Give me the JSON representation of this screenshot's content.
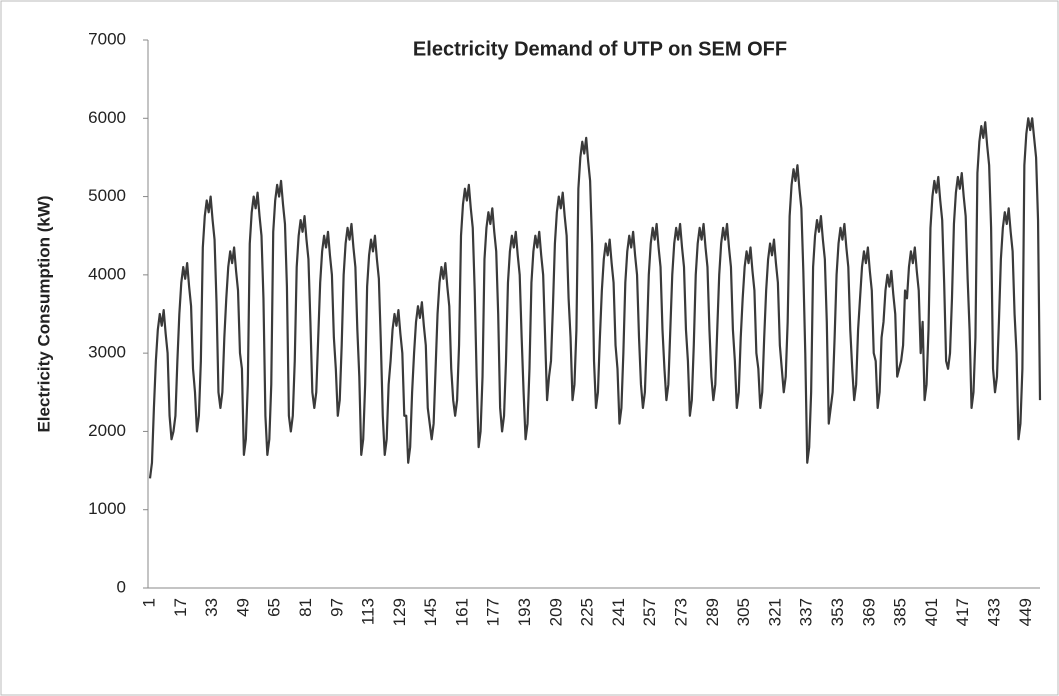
{
  "chart_data": {
    "type": "line",
    "title": "Electricity Demand of UTP on SEM OFF",
    "y_label": "Electricity Consumption (kW)",
    "color": "#3a3a3a",
    "grid": false,
    "ylim": [
      0,
      7000
    ],
    "yticks": [
      0,
      1000,
      2000,
      3000,
      4000,
      5000,
      6000,
      7000
    ],
    "categories": [
      "1",
      null,
      null,
      null,
      null,
      null,
      null,
      null,
      null,
      null,
      null,
      null,
      null,
      null,
      null,
      null,
      "17",
      null,
      null,
      null,
      null,
      null,
      null,
      null,
      null,
      null,
      null,
      null,
      null,
      null,
      null,
      null,
      "33",
      null,
      null,
      null,
      null,
      null,
      null,
      null,
      null,
      null,
      null,
      null,
      null,
      null,
      null,
      null,
      "49",
      null,
      null,
      null,
      null,
      null,
      null,
      null,
      null,
      null,
      null,
      null,
      null,
      null,
      null,
      null,
      "65",
      null,
      null,
      null,
      null,
      null,
      null,
      null,
      null,
      null,
      null,
      null,
      null,
      null,
      null,
      null,
      "81",
      null,
      null,
      null,
      null,
      null,
      null,
      null,
      null,
      null,
      null,
      null,
      null,
      null,
      null,
      null,
      "97",
      null,
      null,
      null,
      null,
      null,
      null,
      null,
      null,
      null,
      null,
      null,
      null,
      null,
      null,
      null,
      "113",
      null,
      null,
      null,
      null,
      null,
      null,
      null,
      null,
      null,
      null,
      null,
      null,
      null,
      null,
      null,
      "129",
      null,
      null,
      null,
      null,
      null,
      null,
      null,
      null,
      null,
      null,
      null,
      null,
      null,
      null,
      null,
      "145",
      null,
      null,
      null,
      null,
      null,
      null,
      null,
      null,
      null,
      null,
      null,
      null,
      null,
      null,
      null,
      "161",
      null,
      null,
      null,
      null,
      null,
      null,
      null,
      null,
      null,
      null,
      null,
      null,
      null,
      null,
      null,
      "177",
      null,
      null,
      null,
      null,
      null,
      null,
      null,
      null,
      null,
      null,
      null,
      null,
      null,
      null,
      null,
      "193",
      null,
      null,
      null,
      null,
      null,
      null,
      null,
      null,
      null,
      null,
      null,
      null,
      null,
      null,
      null,
      "209",
      null,
      null,
      null,
      null,
      null,
      null,
      null,
      null,
      null,
      null,
      null,
      null,
      null,
      null,
      null,
      "225",
      null,
      null,
      null,
      null,
      null,
      null,
      null,
      null,
      null,
      null,
      null,
      null,
      null,
      null,
      null,
      "241",
      null,
      null,
      null,
      null,
      null,
      null,
      null,
      null,
      null,
      null,
      null,
      null,
      null,
      null,
      null,
      "257",
      null,
      null,
      null,
      null,
      null,
      null,
      null,
      null,
      null,
      null,
      null,
      null,
      null,
      null,
      null,
      "273",
      null,
      null,
      null,
      null,
      null,
      null,
      null,
      null,
      null,
      null,
      null,
      null,
      null,
      null,
      null,
      "289",
      null,
      null,
      null,
      null,
      null,
      null,
      null,
      null,
      null,
      null,
      null,
      null,
      null,
      null,
      null,
      "305",
      null,
      null,
      null,
      null,
      null,
      null,
      null,
      null,
      null,
      null,
      null,
      null,
      null,
      null,
      null,
      "321",
      null,
      null,
      null,
      null,
      null,
      null,
      null,
      null,
      null,
      null,
      null,
      null,
      null,
      null,
      null,
      "337",
      null,
      null,
      null,
      null,
      null,
      null,
      null,
      null,
      null,
      null,
      null,
      null,
      null,
      null,
      null,
      "353",
      null,
      null,
      null,
      null,
      null,
      null,
      null,
      null,
      null,
      null,
      null,
      null,
      null,
      null,
      null,
      "369",
      null,
      null,
      null,
      null,
      null,
      null,
      null,
      null,
      null,
      null,
      null,
      null,
      null,
      null,
      null,
      "385",
      null,
      null,
      null,
      null,
      null,
      null,
      null,
      null,
      null,
      null,
      null,
      null,
      null,
      null,
      null,
      "401",
      null,
      null,
      null,
      null,
      null,
      null,
      null,
      null,
      null,
      null,
      null,
      null,
      null,
      null,
      null,
      "417",
      null,
      null,
      null,
      null,
      null,
      null,
      null,
      null,
      null,
      null,
      null,
      null,
      null,
      null,
      null,
      "433",
      null,
      null,
      null,
      null,
      null,
      null,
      null,
      null,
      null,
      null,
      null,
      null,
      null,
      null,
      null,
      "449",
      null,
      null,
      null,
      null,
      null,
      null,
      null
    ],
    "values": [
      1400,
      1600,
      2300,
      2900,
      3300,
      3500,
      3350,
      3550,
      3250,
      3000,
      2200,
      1900,
      2000,
      2200,
      2900,
      3500,
      3900,
      4100,
      3950,
      4150,
      3850,
      3600,
      2800,
      2500,
      2000,
      2200,
      2900,
      4350,
      4750,
      4950,
      4800,
      5000,
      4700,
      4450,
      3650,
      2500,
      2300,
      2500,
      3200,
      3700,
      4100,
      4300,
      4150,
      4350,
      4050,
      3800,
      3000,
      2800,
      1700,
      1900,
      2600,
      4400,
      4800,
      5000,
      4850,
      5050,
      4750,
      4500,
      3700,
      2200,
      1700,
      1900,
      2600,
      4550,
      4950,
      5150,
      5000,
      5200,
      4900,
      4650,
      3850,
      2200,
      2000,
      2200,
      2900,
      4100,
      4500,
      4700,
      4550,
      4750,
      4450,
      4200,
      3400,
      2500,
      2300,
      2500,
      3200,
      3900,
      4300,
      4500,
      4350,
      4550,
      4250,
      4000,
      3200,
      2800,
      2200,
      2400,
      3100,
      4000,
      4400,
      4600,
      4450,
      4650,
      4350,
      4100,
      3300,
      2700,
      1700,
      1900,
      2600,
      3850,
      4250,
      4450,
      4300,
      4500,
      4200,
      3950,
      3150,
      2200,
      1700,
      1900,
      2600,
      2900,
      3300,
      3500,
      3350,
      3550,
      3250,
      3000,
      2200,
      2200,
      1600,
      1800,
      2500,
      3000,
      3400,
      3600,
      3450,
      3650,
      3350,
      3100,
      2300,
      2100,
      1900,
      2100,
      2800,
      3500,
      3900,
      4100,
      3950,
      4150,
      3850,
      3600,
      2800,
      2400,
      2200,
      2400,
      3100,
      4500,
      4900,
      5100,
      4950,
      5150,
      4850,
      4600,
      3800,
      2700,
      1800,
      2000,
      2700,
      4200,
      4600,
      4800,
      4650,
      4850,
      4550,
      4300,
      3500,
      2300,
      2000,
      2200,
      2900,
      3900,
      4300,
      4500,
      4350,
      4550,
      4250,
      4000,
      3200,
      2500,
      1900,
      2100,
      2800,
      3900,
      4300,
      4500,
      4350,
      4550,
      4250,
      4000,
      3200,
      2400,
      2700,
      2900,
      3600,
      4400,
      4800,
      5000,
      4850,
      5050,
      4750,
      4500,
      3700,
      3200,
      2400,
      2600,
      3300,
      5100,
      5500,
      5700,
      5550,
      5750,
      5450,
      5200,
      4400,
      2900,
      2300,
      2500,
      3200,
      3800,
      4200,
      4400,
      4250,
      4450,
      4150,
      3900,
      3100,
      2800,
      2100,
      2300,
      3000,
      3900,
      4300,
      4500,
      4350,
      4550,
      4250,
      4000,
      3200,
      2600,
      2300,
      2500,
      3200,
      4000,
      4400,
      4600,
      4450,
      4650,
      4350,
      4100,
      3300,
      2800,
      2400,
      2600,
      3300,
      4000,
      4400,
      4600,
      4450,
      4650,
      4350,
      4100,
      3300,
      2900,
      2200,
      2400,
      3100,
      4000,
      4400,
      4600,
      4450,
      4650,
      4350,
      4100,
      3300,
      2700,
      2400,
      2600,
      3300,
      4000,
      4400,
      4600,
      4450,
      4650,
      4350,
      4100,
      3300,
      2900,
      2300,
      2500,
      3200,
      3700,
      4100,
      4300,
      4150,
      4350,
      4050,
      3800,
      3000,
      2800,
      2300,
      2500,
      3200,
      3800,
      4200,
      4400,
      4250,
      4450,
      4150,
      3900,
      3100,
      2800,
      2500,
      2700,
      3400,
      4750,
      5150,
      5350,
      5200,
      5400,
      5100,
      4850,
      4050,
      3000,
      1600,
      1800,
      2500,
      4100,
      4500,
      4700,
      4550,
      4750,
      4450,
      4200,
      3400,
      2100,
      2300,
      2500,
      3200,
      4000,
      4400,
      4600,
      4450,
      4650,
      4350,
      4100,
      3300,
      2800,
      2400,
      2600,
      3300,
      3700,
      4100,
      4300,
      4150,
      4350,
      4050,
      3800,
      3000,
      2900,
      2300,
      2500,
      3200,
      3400,
      3800,
      4000,
      3850,
      4050,
      3750,
      3500,
      2700,
      2800,
      2900,
      3100,
      3800,
      3700,
      4100,
      4300,
      4150,
      4350,
      4050,
      3800,
      3000,
      3400,
      2400,
      2600,
      3300,
      4600,
      5000,
      5200,
      5050,
      5250,
      4950,
      4700,
      3900,
      2900,
      2800,
      3000,
      3700,
      4650,
      5050,
      5250,
      5100,
      5300,
      5000,
      4750,
      3950,
      3300,
      2300,
      2500,
      3200,
      5300,
      5700,
      5900,
      5750,
      5950,
      5650,
      5400,
      4600,
      2800,
      2500,
      2700,
      3400,
      4200,
      4600,
      4800,
      4650,
      4850,
      4550,
      4300,
      3500,
      3000,
      1900,
      2100,
      2800,
      5400,
      5800,
      6000,
      5850,
      6000,
      5750,
      5500,
      4700,
      2400
    ]
  }
}
